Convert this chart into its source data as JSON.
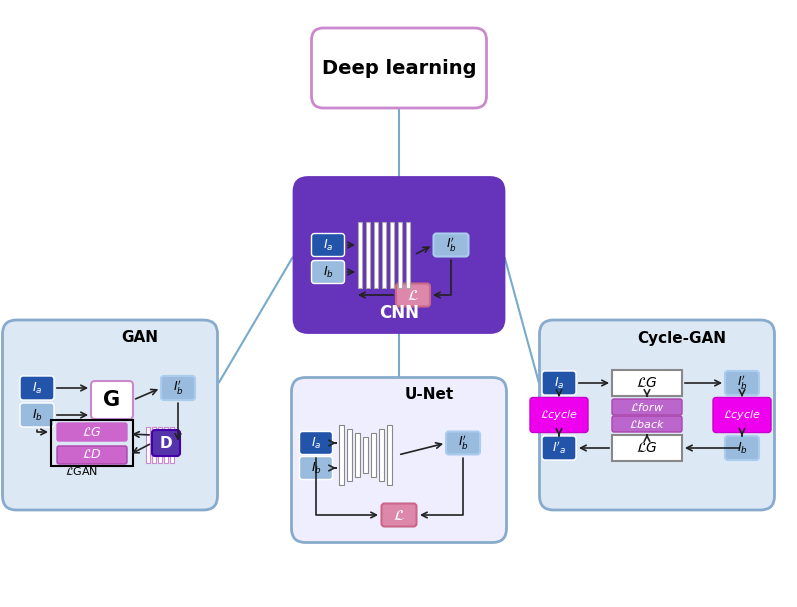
{
  "title": "Deep learning",
  "cnn_label": "CNN",
  "gan_label": "GAN",
  "unet_label": "U-Net",
  "cyclegan_label": "Cycle-GAN",
  "bg_color": "#ffffff",
  "deep_learning_edge": "#cc88cc",
  "cnn_bg": "#6633bb",
  "blue_dark": "#2255aa",
  "blue_light": "#99bbdd",
  "purple_mid": "#cc66cc",
  "magenta": "#ee00ee",
  "pink_loss": "#dd88aa",
  "dark_purple_d": "#5533aa",
  "gan_bg": "#dde8f5",
  "gan_edge": "#88aacc",
  "unet_bg": "#eeeeff",
  "unet_edge": "#88aacc",
  "cg_bg": "#dde8f5",
  "cg_edge": "#88aacc",
  "connect_color": "#77aacc",
  "arrow_color": "#222222"
}
